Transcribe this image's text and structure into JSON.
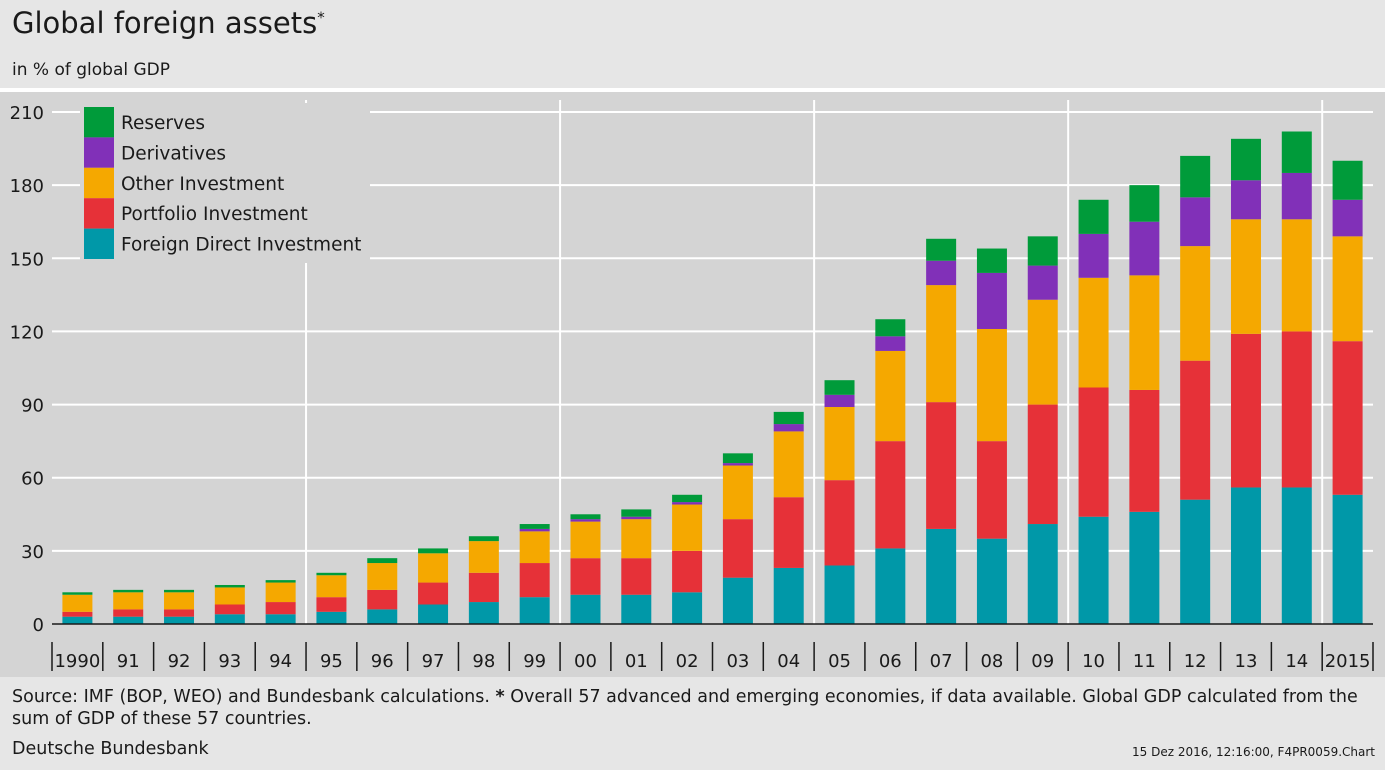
{
  "header": {
    "title": "Global foreign assets",
    "title_marker": "*",
    "subtitle": "in % of global GDP"
  },
  "footer": {
    "source_before": "Source: IMF (BOP, WEO) and Bundesbank calculations. ",
    "source_marker": "*",
    "source_after": " Overall 57 advanced and emerging economies, if data available. Global GDP calculated from the sum of GDP of these 57 countries.",
    "publisher": "Deutsche Bundesbank",
    "stamp": "15 Dez 2016, 12:16:00, F4PR0059.Chart"
  },
  "chart_data": {
    "type": "bar",
    "stacked": true,
    "categories": [
      "1990",
      "91",
      "92",
      "93",
      "94",
      "95",
      "96",
      "97",
      "98",
      "99",
      "00",
      "01",
      "02",
      "03",
      "04",
      "05",
      "06",
      "07",
      "08",
      "09",
      "10",
      "11",
      "12",
      "13",
      "14",
      "2015"
    ],
    "series": [
      {
        "name": "Foreign Direct Investment",
        "color": "#0098a8",
        "values": [
          3,
          3,
          3,
          4,
          4,
          5,
          6,
          8,
          9,
          11,
          12,
          12,
          13,
          19,
          23,
          24,
          31,
          39,
          35,
          41,
          44,
          46,
          51,
          56,
          56,
          53
        ]
      },
      {
        "name": "Portfolio Investment",
        "color": "#e63138",
        "values": [
          2,
          3,
          3,
          4,
          5,
          6,
          8,
          9,
          12,
          14,
          15,
          15,
          17,
          24,
          29,
          35,
          44,
          52,
          40,
          49,
          53,
          50,
          57,
          63,
          64,
          63
        ]
      },
      {
        "name": "Other Investment",
        "color": "#f5a800",
        "values": [
          7,
          7,
          7,
          7,
          8,
          9,
          11,
          12,
          13,
          13,
          15,
          16,
          19,
          22,
          27,
          30,
          37,
          48,
          46,
          43,
          45,
          47,
          47,
          47,
          46,
          43
        ]
      },
      {
        "name": "Derivatives",
        "color": "#8130b8",
        "values": [
          0,
          0,
          0,
          0,
          0,
          0,
          0,
          0,
          0,
          1,
          1,
          1,
          1,
          1,
          3,
          5,
          6,
          10,
          23,
          14,
          18,
          22,
          20,
          16,
          19,
          15
        ]
      },
      {
        "name": "Reserves",
        "color": "#009b3a",
        "values": [
          1,
          1,
          1,
          1,
          1,
          1,
          2,
          2,
          2,
          2,
          2,
          3,
          3,
          4,
          5,
          6,
          7,
          9,
          10,
          12,
          14,
          15,
          17,
          17,
          17,
          16
        ]
      }
    ],
    "legend_order": [
      "Reserves",
      "Derivatives",
      "Other Investment",
      "Portfolio Investment",
      "Foreign Direct Investment"
    ],
    "legend_position": "top-left",
    "ylim": [
      0,
      210
    ],
    "yticks": [
      0,
      30,
      60,
      90,
      120,
      150,
      180,
      210
    ],
    "xlabel": "",
    "ylabel": "",
    "grid": true,
    "vertical_separators_after": [
      "94",
      "99",
      "04",
      "09",
      "14"
    ]
  }
}
